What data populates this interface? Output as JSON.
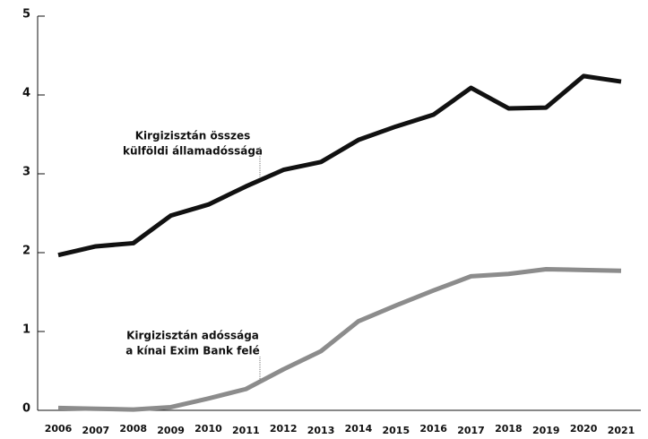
{
  "chart_data": {
    "type": "line",
    "x": [
      2006,
      2007,
      2008,
      2009,
      2010,
      2011,
      2012,
      2013,
      2014,
      2015,
      2016,
      2017,
      2018,
      2019,
      2020,
      2021
    ],
    "series": [
      {
        "label": [
          "Kirgizisztán összes",
          "külföldi államadóssága"
        ],
        "color": "#111111",
        "values": [
          1.97,
          2.08,
          2.12,
          2.47,
          2.61,
          2.84,
          3.05,
          3.15,
          3.43,
          3.6,
          3.75,
          4.09,
          3.83,
          3.84,
          4.24,
          4.17
        ]
      },
      {
        "label": [
          "Kirgizisztán adóssága",
          "a kínai Exim Bank felé"
        ],
        "color": "#8c8c8c",
        "values": [
          0.03,
          0.02,
          0.01,
          0.04,
          0.15,
          0.27,
          0.52,
          0.75,
          1.13,
          1.33,
          1.52,
          1.7,
          1.73,
          1.79,
          1.78,
          1.77
        ]
      }
    ],
    "ylim": [
      0,
      5
    ],
    "yticks": [
      0,
      1,
      2,
      3,
      4,
      5
    ],
    "grid": false
  }
}
